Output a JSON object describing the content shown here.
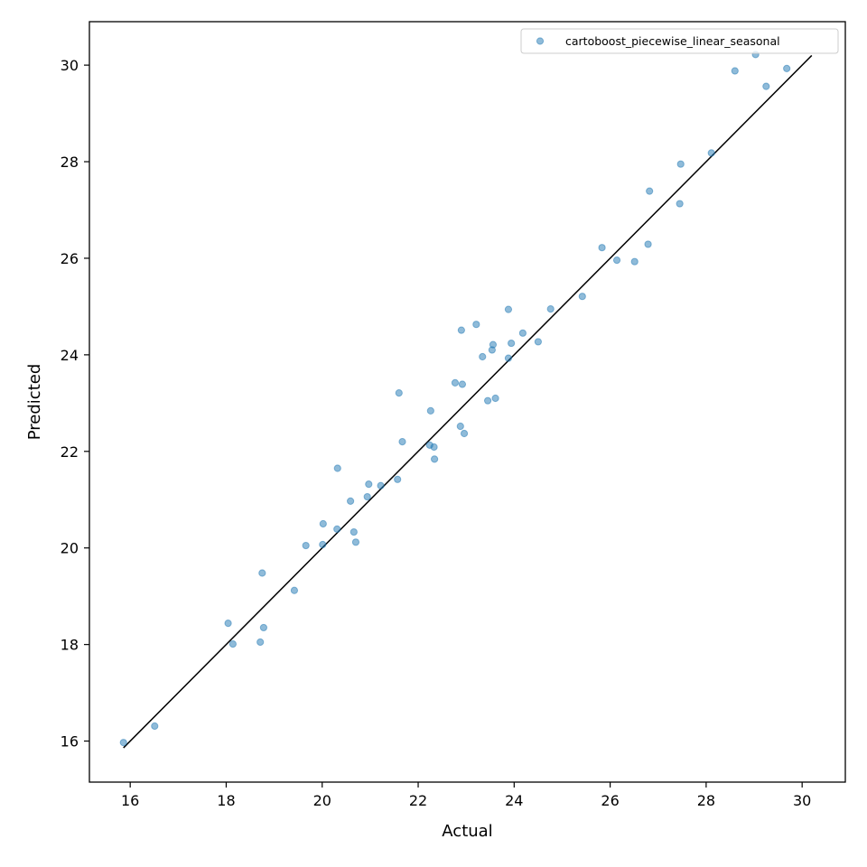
{
  "chart_data": {
    "type": "scatter",
    "xlabel": "Actual",
    "ylabel": "Predicted",
    "xlim": [
      15.15,
      30.9
    ],
    "ylim": [
      15.15,
      30.9
    ],
    "xticks": [
      16,
      18,
      20,
      22,
      24,
      26,
      28,
      30
    ],
    "yticks": [
      16,
      18,
      20,
      22,
      24,
      26,
      28,
      30
    ],
    "grid": false,
    "legend_position": "top-right",
    "series": [
      {
        "name": "cartoboost_piecewise_linear_seasonal",
        "color": "#1f77b4",
        "points": [
          [
            15.86,
            15.97
          ],
          [
            16.51,
            16.31
          ],
          [
            18.04,
            18.44
          ],
          [
            18.14,
            18.01
          ],
          [
            18.71,
            18.05
          ],
          [
            18.75,
            19.48
          ],
          [
            18.78,
            18.35
          ],
          [
            19.42,
            19.12
          ],
          [
            19.66,
            20.05
          ],
          [
            20.01,
            20.07
          ],
          [
            20.02,
            20.5
          ],
          [
            20.31,
            20.39
          ],
          [
            20.32,
            21.65
          ],
          [
            20.59,
            20.97
          ],
          [
            20.66,
            20.33
          ],
          [
            20.7,
            20.12
          ],
          [
            20.94,
            21.06
          ],
          [
            20.97,
            21.32
          ],
          [
            21.22,
            21.29
          ],
          [
            21.57,
            21.42
          ],
          [
            21.6,
            23.21
          ],
          [
            21.67,
            22.2
          ],
          [
            22.24,
            22.13
          ],
          [
            22.26,
            22.84
          ],
          [
            22.33,
            22.09
          ],
          [
            22.34,
            21.84
          ],
          [
            22.77,
            23.42
          ],
          [
            22.88,
            22.52
          ],
          [
            22.9,
            24.51
          ],
          [
            22.92,
            23.39
          ],
          [
            22.96,
            22.37
          ],
          [
            23.21,
            24.63
          ],
          [
            23.34,
            23.96
          ],
          [
            23.45,
            23.05
          ],
          [
            23.54,
            24.1
          ],
          [
            23.56,
            24.21
          ],
          [
            23.61,
            23.1
          ],
          [
            23.88,
            23.93
          ],
          [
            23.88,
            24.94
          ],
          [
            23.94,
            24.24
          ],
          [
            24.18,
            24.45
          ],
          [
            24.5,
            24.27
          ],
          [
            24.76,
            24.95
          ],
          [
            25.42,
            25.21
          ],
          [
            25.83,
            26.22
          ],
          [
            26.14,
            25.96
          ],
          [
            26.51,
            25.93
          ],
          [
            26.79,
            26.29
          ],
          [
            26.82,
            27.39
          ],
          [
            27.45,
            27.13
          ],
          [
            27.47,
            27.95
          ],
          [
            28.11,
            28.18
          ],
          [
            28.6,
            29.88
          ],
          [
            29.03,
            30.22
          ],
          [
            29.25,
            29.56
          ],
          [
            29.68,
            29.93
          ]
        ]
      }
    ],
    "reference_line": [
      [
        15.86,
        15.86
      ],
      [
        30.2,
        30.2
      ]
    ]
  }
}
